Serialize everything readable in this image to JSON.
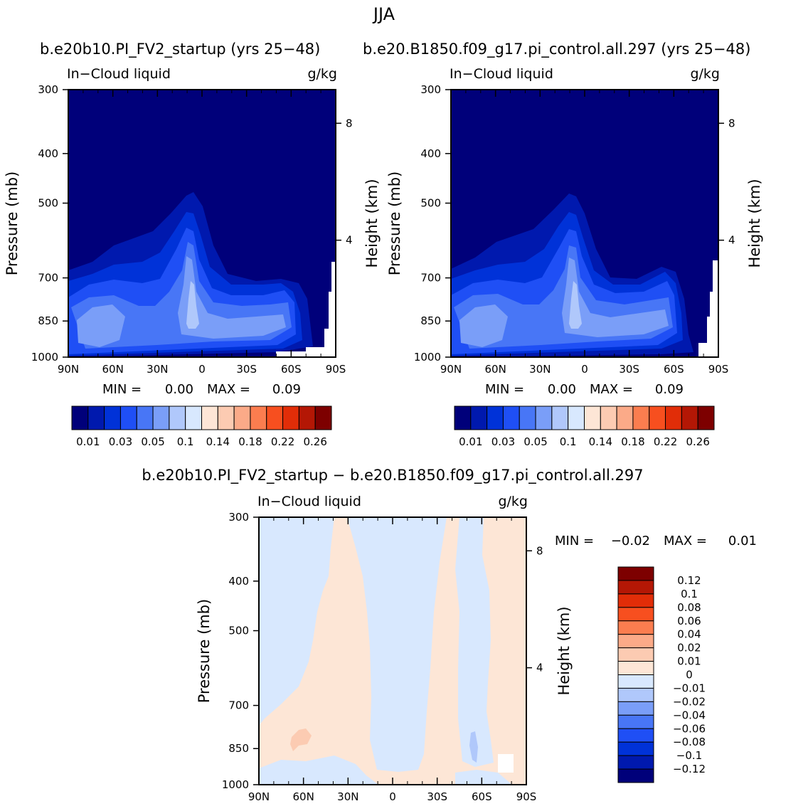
{
  "figure": {
    "season": "JJA",
    "diff_title": "b.e20b10.PI_FV2_startup − b.e20.B1850.f09_g17.pi_control.all.297"
  },
  "colors": {
    "abs_fill": [
      "#00007a",
      "#0019ae",
      "#0032d8",
      "#1f4ff5",
      "#4876f6",
      "#7a9ef8",
      "#b0c8fb",
      "#d8e8fe",
      "#fde6d6",
      "#fccbb2",
      "#fbaa88",
      "#fb7d4f",
      "#f74f1f",
      "#e12d08",
      "#b41705",
      "#7d0000"
    ],
    "diff_fill": [
      "#00007a",
      "#0019ae",
      "#0032d8",
      "#1f4ff5",
      "#4876f6",
      "#7a9ef8",
      "#b0c8fb",
      "#d8e8fe",
      "#fde6d6",
      "#fccbb2",
      "#fbaa88",
      "#fb7d4f",
      "#f74f1f",
      "#e12d08",
      "#b41705",
      "#7d0000"
    ]
  },
  "chart_data": [
    {
      "type": "heatmap",
      "title": "b.e20b10.PI_FV2_startup (yrs 25−48)",
      "left_title": "In−Cloud liquid",
      "right_title": "g/kg",
      "ylabel": "Pressure (mb)",
      "ylabel_right": "Height (km)",
      "x_ticks": [
        "90N",
        "60N",
        "30N",
        "0",
        "30S",
        "60S",
        "90S"
      ],
      "y_ticks": [
        "300",
        "400",
        "500",
        "700",
        "850",
        "1000"
      ],
      "y_ticks_right": [
        "8",
        "4"
      ],
      "min_label": "MIN =",
      "min_value": "0.00",
      "max_label": "MAX =",
      "max_value": "0.09",
      "colorbar_labels": [
        "0.01",
        "0.03",
        "0.05",
        "0.1",
        "0.14",
        "0.18",
        "0.22",
        "0.26"
      ],
      "ylim": [
        1000,
        300
      ]
    },
    {
      "type": "heatmap",
      "title": "b.e20.B1850.f09_g17.pi_control.all.297 (yrs 25−48)",
      "left_title": "In−Cloud liquid",
      "right_title": "g/kg",
      "ylabel": "Pressure (mb)",
      "ylabel_right": "Height (km)",
      "x_ticks": [
        "90N",
        "60N",
        "30N",
        "0",
        "30S",
        "60S",
        "90S"
      ],
      "y_ticks": [
        "300",
        "400",
        "500",
        "700",
        "850",
        "1000"
      ],
      "y_ticks_right": [
        "8",
        "4"
      ],
      "min_label": "MIN =",
      "min_value": "0.00",
      "max_label": "MAX =",
      "max_value": "0.09",
      "colorbar_labels": [
        "0.01",
        "0.03",
        "0.05",
        "0.1",
        "0.14",
        "0.18",
        "0.22",
        "0.26"
      ],
      "ylim": [
        1000,
        300
      ]
    },
    {
      "type": "heatmap",
      "title": "b.e20b10.PI_FV2_startup − b.e20.B1850.f09_g17.pi_control.all.297",
      "left_title": "In−Cloud liquid",
      "right_title": "g/kg",
      "ylabel": "Pressure (mb)",
      "ylabel_right": "Height (km)",
      "x_ticks": [
        "90N",
        "60N",
        "30N",
        "0",
        "30S",
        "60S",
        "90S"
      ],
      "y_ticks": [
        "300",
        "400",
        "500",
        "700",
        "850",
        "1000"
      ],
      "y_ticks_right": [
        "8",
        "4"
      ],
      "min_label": "MIN =",
      "min_value": "−0.02",
      "max_label": "MAX =",
      "max_value": "0.01",
      "colorbar_labels": [
        "0.12",
        "0.1",
        "0.08",
        "0.06",
        "0.04",
        "0.02",
        "0.01",
        "0",
        "−0.01",
        "−0.02",
        "−0.04",
        "−0.06",
        "−0.08",
        "−0.1",
        "−0.12"
      ],
      "ylim": [
        1000,
        300
      ]
    }
  ]
}
